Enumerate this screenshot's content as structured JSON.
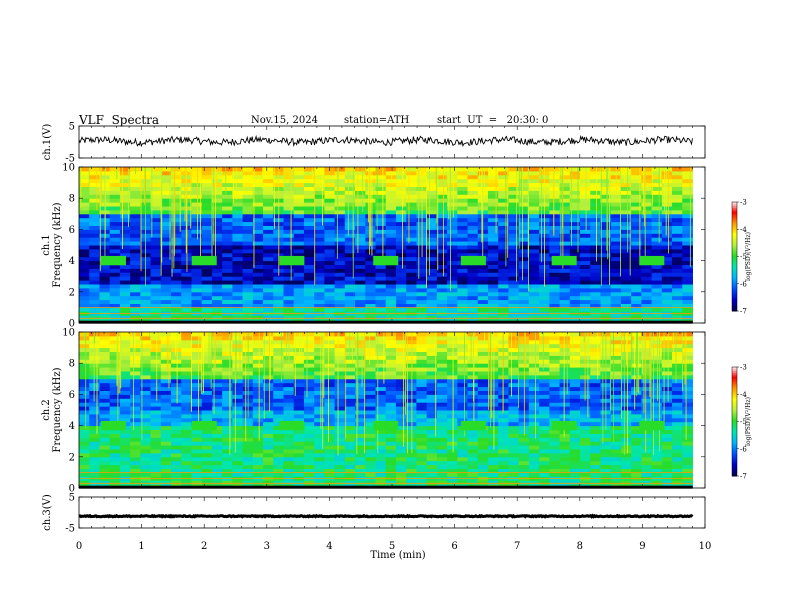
{
  "header": {
    "title": "VLF  Spectra",
    "date": "Nov.15, 2024",
    "station": "station=ATH",
    "start_ut": "start  UT  =   20:30: 0"
  },
  "chart_data": [
    {
      "type": "line",
      "panel": "ch1-waveform",
      "ylabel": "ch.1(V)",
      "yticks": [
        "5",
        "-5"
      ],
      "ylim": [
        -5,
        5
      ],
      "mean_level": 0.3,
      "color": "#000000"
    },
    {
      "type": "heatmap",
      "panel": "ch1-spectrogram",
      "ylabel_line1": "ch.1",
      "ylabel_line2": "Frequency (kHz)",
      "yticks": [
        "0",
        "2",
        "4",
        "6",
        "8",
        "10"
      ],
      "ylim": [
        0,
        10
      ],
      "colorbar": {
        "label": "log(PSD)(V²/Hz)",
        "ticks": [
          "-3",
          "-4",
          "-5",
          "-6",
          "-7"
        ],
        "range": [
          -7,
          -3
        ]
      },
      "pulse_freq_khz": 4.0,
      "pulse_starts_min": [
        0.35,
        1.8,
        3.2,
        4.7,
        6.1,
        7.55,
        8.95
      ]
    },
    {
      "type": "heatmap",
      "panel": "ch2-spectrogram",
      "ylabel_line1": "ch.2",
      "ylabel_line2": "Frequency (kHz)",
      "yticks": [
        "0",
        "2",
        "4",
        "6",
        "8",
        "10"
      ],
      "ylim": [
        0,
        10
      ],
      "colorbar": {
        "label": "log(PSD)(V²/Hz)",
        "ticks": [
          "-3",
          "-4",
          "-5",
          "-6",
          "-7"
        ],
        "range": [
          -7,
          -3
        ]
      },
      "pulse_freq_khz": 4.0,
      "pulse_starts_min": [
        0.35,
        1.8,
        3.2,
        4.7,
        6.1,
        7.55,
        8.95
      ]
    },
    {
      "type": "line",
      "panel": "ch3-waveform",
      "ylabel": "ch.3(V)",
      "yticks": [
        "5",
        "-5"
      ],
      "ylim": [
        -5,
        5
      ],
      "mean_level": -1.2,
      "color": "#000000"
    }
  ],
  "xaxis": {
    "label": "Time (min)",
    "ticks": [
      "0",
      "1",
      "2",
      "3",
      "4",
      "5",
      "6",
      "7",
      "8",
      "9",
      "10"
    ],
    "xlim": [
      0,
      10
    ],
    "data_end": 9.8
  },
  "colors": {
    "colormap": [
      "#000050",
      "#0000c8",
      "#0050ff",
      "#00b4ff",
      "#00e6b4",
      "#28dc28",
      "#b4f03c",
      "#ffff00",
      "#ff9600",
      "#ff0000",
      "#ffffff"
    ]
  }
}
